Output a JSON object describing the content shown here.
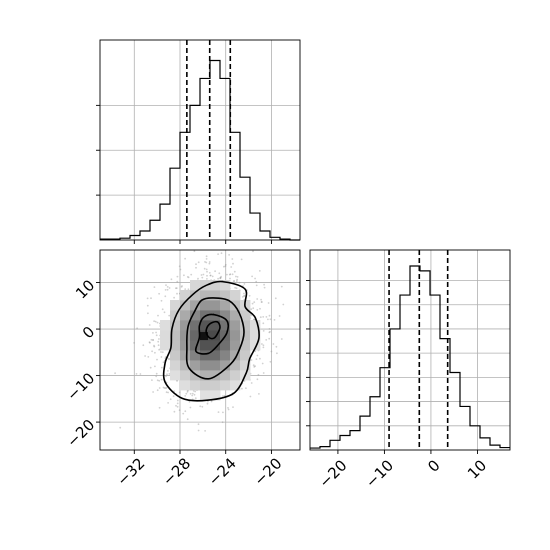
{
  "chart_data": [
    {
      "type": "bar",
      "panel": "top-left",
      "title": "",
      "xlabel": "",
      "ylabel": "",
      "xlim": [
        -35,
        -17.5
      ],
      "grid": true,
      "bin_edges": [
        -35,
        -34.125,
        -33.25,
        -32.375,
        -31.5,
        -30.625,
        -29.75,
        -28.875,
        -28,
        -27.125,
        -26.25,
        -25.375,
        -24.5,
        -23.625,
        -22.75,
        -21.875,
        -21,
        -20.125,
        -19.25,
        -18.375,
        -17.5
      ],
      "counts": [
        1,
        1,
        2,
        5,
        10,
        22,
        40,
        80,
        120,
        150,
        180,
        200,
        180,
        120,
        70,
        30,
        10,
        3,
        1,
        0
      ],
      "count_max": 205,
      "quantiles": [
        -27.4,
        -25.4,
        -23.6
      ],
      "xticks": [
        -32,
        -28,
        -24,
        -20
      ],
      "xtick_labels": [
        "",
        "",
        "",
        ""
      ],
      "ytick_counts": [
        0,
        50,
        100,
        150
      ]
    },
    {
      "type": "scatter",
      "panel": "bottom-left",
      "title": "",
      "xlabel": "",
      "ylabel": "",
      "xlim": [
        -35,
        -17.5
      ],
      "ylim": [
        -26,
        17
      ],
      "grid": true,
      "center": [
        -25.4,
        -1.5
      ],
      "spread": [
        2.0,
        6.2
      ],
      "correlation": 0.1,
      "n_points": 2600,
      "density_max_cell": [
        -25.9,
        -1.5
      ],
      "contours": [
        {
          "level": "outer",
          "points": [
            [
              -24.3,
              10.2
            ],
            [
              -22.3,
              8.6
            ],
            [
              -22.3,
              4.8
            ],
            [
              -21.4,
              2.4
            ],
            [
              -21.1,
              -2.0
            ],
            [
              -21.9,
              -6.4
            ],
            [
              -22.2,
              -9.4
            ],
            [
              -23.3,
              -13.8
            ],
            [
              -25.6,
              -15.3
            ],
            [
              -27.8,
              -14.9
            ],
            [
              -29.3,
              -11.4
            ],
            [
              -29.3,
              -7.3
            ],
            [
              -28.8,
              -4.0
            ],
            [
              -28.7,
              0.1
            ],
            [
              -28.1,
              4.1
            ],
            [
              -26.9,
              7.4
            ],
            [
              -25.7,
              9.4
            ]
          ]
        },
        {
          "level": "middle",
          "points": [
            [
              -25.1,
              6.7
            ],
            [
              -23.7,
              6.1
            ],
            [
              -22.8,
              3.4
            ],
            [
              -22.4,
              -0.7
            ],
            [
              -22.8,
              -4.4
            ],
            [
              -23.6,
              -7.6
            ],
            [
              -25.5,
              -10.7
            ],
            [
              -27.2,
              -8.4
            ],
            [
              -27.4,
              -4.0
            ],
            [
              -27.3,
              0.5
            ],
            [
              -26.7,
              3.9
            ],
            [
              -26.1,
              6.2
            ]
          ]
        },
        {
          "level": "inner",
          "points": [
            [
              -25.0,
              3.1
            ],
            [
              -23.9,
              1.8
            ],
            [
              -23.9,
              -0.8
            ],
            [
              -24.6,
              -3.2
            ],
            [
              -25.5,
              -5.2
            ],
            [
              -26.6,
              -4.8
            ],
            [
              -26.3,
              -1.8
            ],
            [
              -26.3,
              0.7
            ],
            [
              -25.9,
              2.6
            ]
          ]
        },
        {
          "level": "core",
          "points": [
            [
              -24.7,
              1.5
            ],
            [
              -24.5,
              0.4
            ],
            [
              -24.7,
              -0.9
            ],
            [
              -25.0,
              -1.9
            ],
            [
              -25.4,
              -1.9
            ],
            [
              -25.7,
              -0.8
            ],
            [
              -25.6,
              0.5
            ],
            [
              -25.2,
              1.4
            ]
          ]
        }
      ],
      "xticks": [
        -32,
        -28,
        -24,
        -20
      ],
      "xtick_labels": [
        "−32",
        "−28",
        "−24",
        "−20"
      ],
      "yticks": [
        -20,
        -10,
        0,
        10
      ],
      "ytick_labels": [
        "−20",
        "−10",
        "0",
        "10"
      ]
    },
    {
      "type": "bar",
      "panel": "bottom-right",
      "title": "",
      "xlabel": "",
      "ylabel": "",
      "xlim": [
        -26,
        17
      ],
      "grid": true,
      "bin_edges": [
        -26,
        -23.85,
        -21.7,
        -19.55,
        -17.4,
        -15.25,
        -13.1,
        -10.95,
        -8.8,
        -6.65,
        -4.5,
        -2.35,
        -0.2,
        1.95,
        4.1,
        6.25,
        8.4,
        10.55,
        12.7,
        14.85,
        17
      ],
      "counts": [
        4,
        7,
        20,
        30,
        40,
        70,
        110,
        170,
        250,
        320,
        380,
        370,
        320,
        230,
        160,
        90,
        50,
        25,
        10,
        5
      ],
      "count_max": 380,
      "quantiles": [
        -9.0,
        -2.5,
        3.6
      ],
      "xticks": [
        -20,
        -10,
        0,
        10
      ],
      "xtick_labels": [
        "−20",
        "−10",
        "0",
        "10"
      ],
      "ytick_counts": [
        0,
        50,
        100,
        150,
        200,
        250,
        300,
        350
      ]
    }
  ]
}
